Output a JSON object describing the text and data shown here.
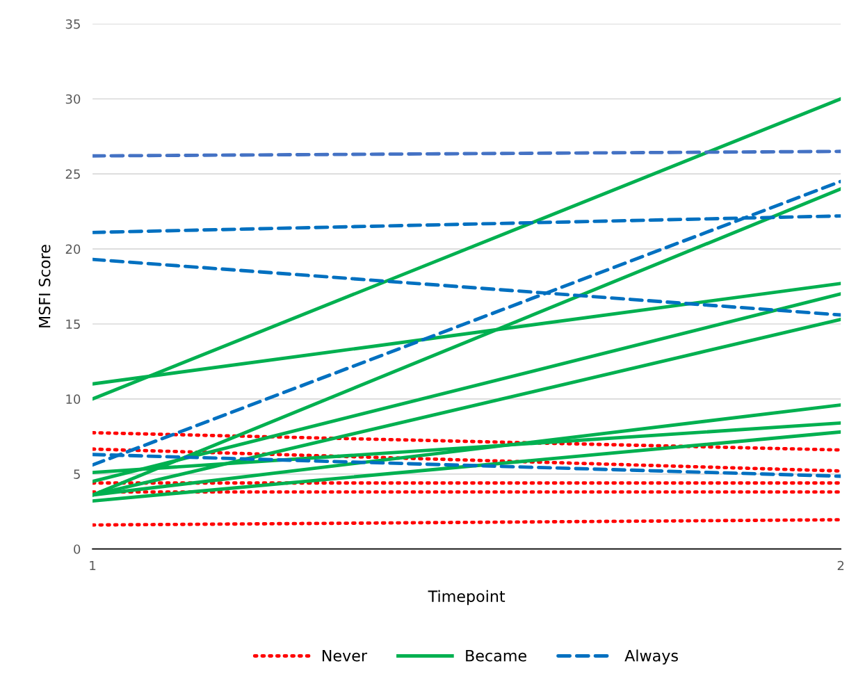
{
  "chart_data": {
    "type": "line",
    "xlabel": "Timepoint",
    "ylabel": "MSFI Score",
    "x": [
      1,
      2
    ],
    "xlim": [
      1,
      2
    ],
    "xticks": [
      1,
      2
    ],
    "ylim": [
      0,
      35
    ],
    "yticks": [
      0,
      5,
      10,
      15,
      20,
      25,
      30,
      35
    ],
    "grid": "y",
    "legend": "bottom",
    "marker": "none",
    "series": [
      {
        "name": "Never",
        "color": "#ff0000",
        "line_style": "dotted",
        "values": [
          7.75,
          6.6
        ]
      },
      {
        "color": "#ff0000",
        "line_style": "dotted",
        "values": [
          6.66,
          5.2
        ]
      },
      {
        "color": "#ff0000",
        "line_style": "dotted",
        "values": [
          4.4,
          4.4
        ]
      },
      {
        "color": "#ff0000",
        "line_style": "dotted",
        "values": [
          3.8,
          3.8
        ]
      },
      {
        "color": "#ff0000",
        "line_style": "dotted",
        "values": [
          1.6,
          1.95
        ]
      },
      {
        "name": "Became",
        "color": "#00b050",
        "line_style": "solid",
        "values": [
          10.0,
          30.0
        ]
      },
      {
        "color": "#00b050",
        "line_style": "solid",
        "values": [
          11.0,
          17.7
        ]
      },
      {
        "color": "#00b050",
        "line_style": "solid",
        "values": [
          3.6,
          24.0
        ]
      },
      {
        "color": "#00b050",
        "line_style": "solid",
        "values": [
          4.5,
          17.0
        ]
      },
      {
        "color": "#00b050",
        "line_style": "solid",
        "values": [
          3.6,
          15.3
        ]
      },
      {
        "color": "#00b050",
        "line_style": "solid",
        "values": [
          3.6,
          9.6
        ]
      },
      {
        "color": "#00b050",
        "line_style": "solid",
        "values": [
          5.1,
          8.4
        ]
      },
      {
        "color": "#00b050",
        "line_style": "solid",
        "values": [
          3.2,
          7.8
        ]
      },
      {
        "name": "Always",
        "color": "#0070c0",
        "line_style": "dashed",
        "values": [
          5.6,
          24.5
        ]
      },
      {
        "color": "#4472c4",
        "line_style": "dashed",
        "values": [
          26.2,
          26.5
        ]
      },
      {
        "color": "#0070c0",
        "line_style": "dashed",
        "values": [
          21.1,
          22.2
        ]
      },
      {
        "color": "#0070c0",
        "line_style": "dashed",
        "values": [
          19.3,
          15.6
        ]
      },
      {
        "color": "#0070c0",
        "line_style": "dashed",
        "values": [
          6.3,
          4.85
        ]
      }
    ]
  }
}
